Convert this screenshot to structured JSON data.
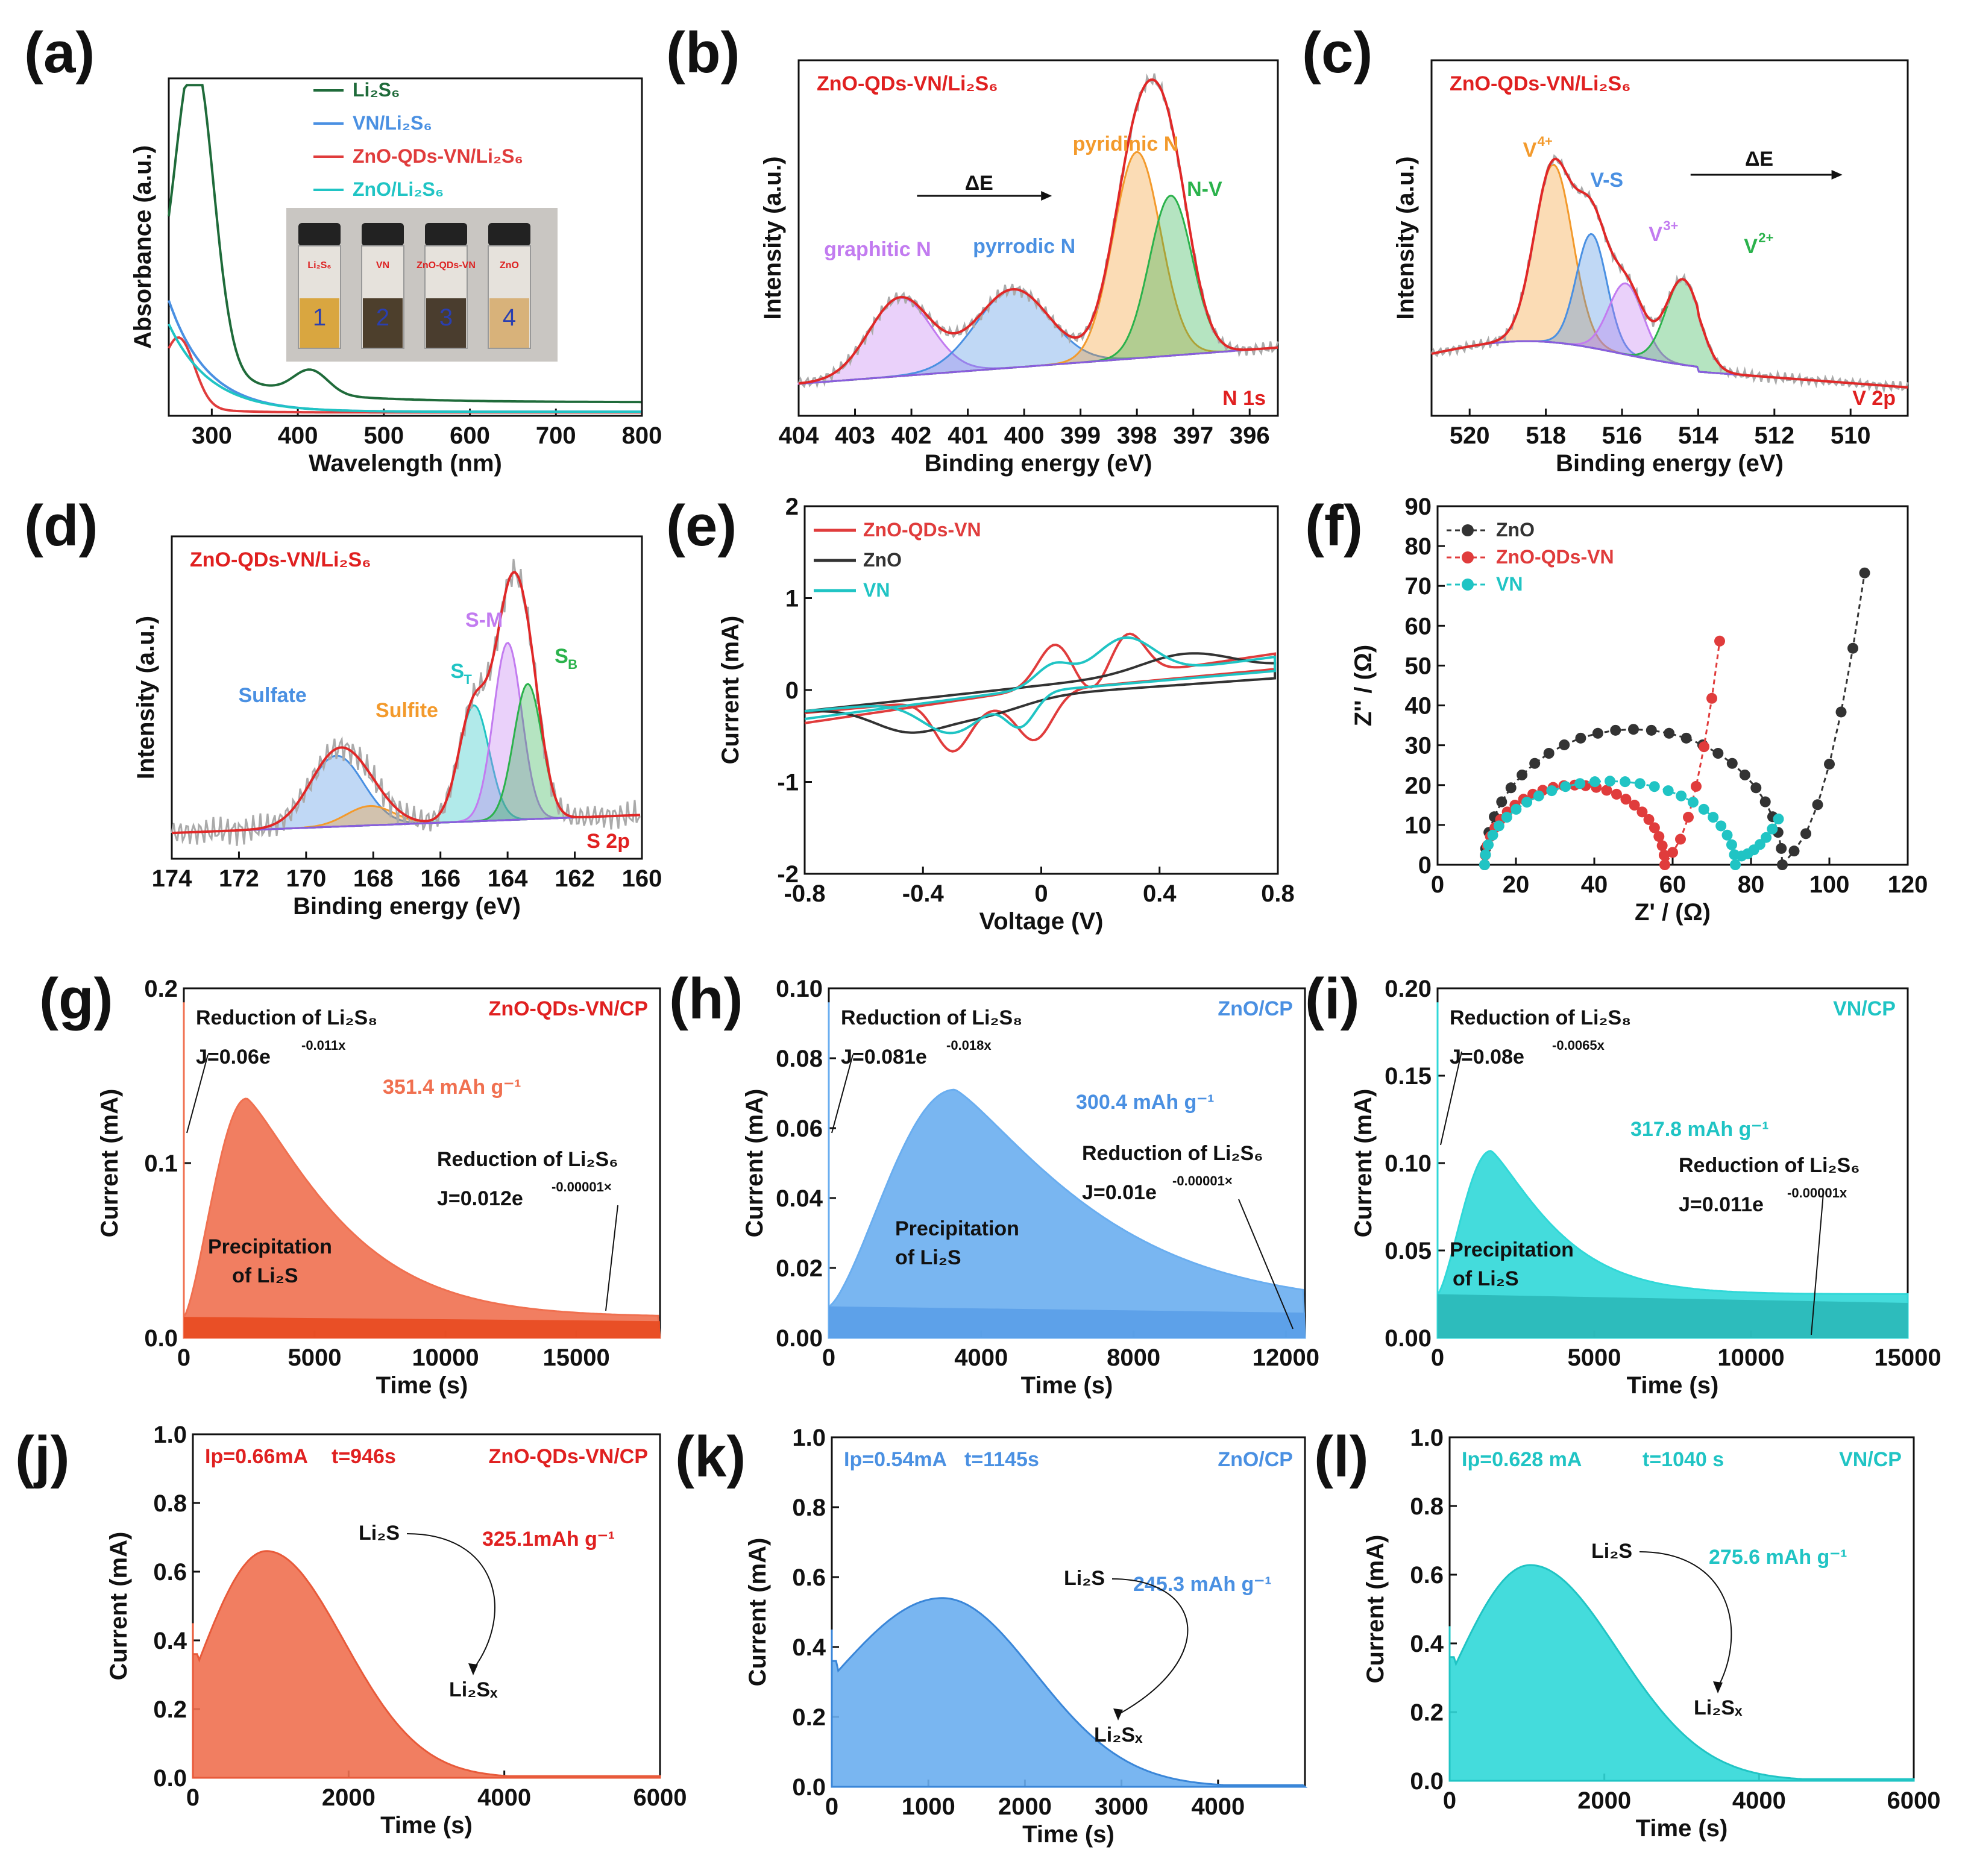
{
  "figure": {
    "panel_labels": [
      "(a)",
      "(b)",
      "(c)",
      "(d)",
      "(e)",
      "(f)",
      "(g)",
      "(h)",
      "(i)",
      "(j)",
      "(k)",
      "(l)"
    ]
  },
  "chart_data": [
    {
      "id": "a",
      "type": "line",
      "xlabel": "Wavelength (nm)",
      "ylabel": "Absorbance (a.u.)",
      "xlim": [
        250,
        800
      ],
      "xticks": [
        300,
        400,
        500,
        600,
        700,
        800
      ],
      "legend": [
        "Li2S6",
        "VN/Li2S6",
        "ZnO-QDs-VN/Li2S6",
        "ZnO/Li2S6"
      ],
      "legend_text": [
        "Li₂S₆",
        "VN/Li₂S₆",
        "ZnO-QDs-VN/Li₂S₆",
        "ZnO/Li₂S₆"
      ],
      "inset_labels": [
        "Li₂S₆",
        "VN",
        "ZnO-QDs-VN",
        "ZnO"
      ],
      "inset_numbers": [
        "1",
        "2",
        "3",
        "4"
      ],
      "colors": [
        "#1f6b3a",
        "#4a90e2",
        "#e03c3c",
        "#20c4c4"
      ]
    },
    {
      "id": "b",
      "type": "line",
      "title": "ZnO-QDs-VN/Li₂S₆",
      "corner": "N 1s",
      "xlabel": "Binding energy (eV)",
      "ylabel": "Intensity (a.u.)",
      "xlim": [
        404,
        395.5
      ],
      "xticks": [
        404,
        403,
        402,
        401,
        400,
        399,
        398,
        397,
        396
      ],
      "peaks": [
        {
          "name": "graphitic N",
          "center": 402.2,
          "color": "#c27bf0"
        },
        {
          "name": "pyrrodic N",
          "center": 400.2,
          "color": "#4a90e2"
        },
        {
          "name": "pyridinic N",
          "center": 398.0,
          "color": "#f39a2c"
        },
        {
          "name": "N-V",
          "center": 397.4,
          "color": "#2bb24c"
        }
      ],
      "shift_label": "ΔE"
    },
    {
      "id": "c",
      "type": "line",
      "title": "ZnO-QDs-VN/Li₂S₆",
      "corner": "V 2p",
      "xlabel": "Binding energy (eV)",
      "ylabel": "Intensity (a.u.)",
      "xlim": [
        521,
        508.5
      ],
      "xticks": [
        520,
        518,
        516,
        514,
        512,
        510
      ],
      "peaks": [
        {
          "name": "V4+",
          "center": 517.8,
          "color": "#f39a2c"
        },
        {
          "name": "V-S",
          "center": 516.8,
          "color": "#4a90e2"
        },
        {
          "name": "V3+",
          "center": 515.9,
          "color": "#c27bf0"
        },
        {
          "name": "V2+",
          "center": 514.4,
          "color": "#2bb24c"
        }
      ],
      "shift_label": "ΔE"
    },
    {
      "id": "d",
      "type": "line",
      "title": "ZnO-QDs-VN/Li₂S₆",
      "corner": "S 2p",
      "xlabel": "Binding energy (eV)",
      "ylabel": "Intensity (a.u.)",
      "xlim": [
        174,
        160
      ],
      "xticks": [
        174,
        172,
        170,
        168,
        166,
        164,
        162,
        160
      ],
      "peaks": [
        {
          "name": "Sulfate",
          "center": 169.1,
          "color": "#4a90e2"
        },
        {
          "name": "Sulfite",
          "center": 168.1,
          "color": "#f39a2c"
        },
        {
          "name": "ST",
          "center": 165.0,
          "color": "#20c4c4"
        },
        {
          "name": "S-M",
          "center": 164.0,
          "color": "#c27bf0"
        },
        {
          "name": "SB",
          "center": 163.4,
          "color": "#2bb24c"
        }
      ]
    },
    {
      "id": "e",
      "type": "line",
      "xlabel": "Voltage (V)",
      "ylabel": "Current (mA)",
      "xlim": [
        -0.8,
        0.8
      ],
      "ylim": [
        -2,
        2
      ],
      "xticks": [
        -0.8,
        -0.4,
        0.0,
        0.4,
        0.8
      ],
      "yticks": [
        -2,
        -1,
        0,
        1,
        2
      ],
      "legend": [
        "ZnO-QDs-VN",
        "ZnO",
        "VN"
      ],
      "colors": [
        "#e03c3c",
        "#333333",
        "#20c4c4"
      ]
    },
    {
      "id": "f",
      "type": "scatter",
      "xlabel": "Z' / (Ω)",
      "ylabel": "Z'' / (Ω)",
      "xlim": [
        0,
        120
      ],
      "ylim": [
        0,
        90
      ],
      "xticks": [
        0,
        20,
        40,
        60,
        80,
        100,
        120
      ],
      "yticks": [
        0,
        10,
        20,
        30,
        40,
        50,
        60,
        70,
        80,
        90
      ],
      "legend": [
        "ZnO",
        "ZnO-QDs-VN",
        "VN"
      ],
      "colors": [
        "#333333",
        "#e03c3c",
        "#20c4c4"
      ],
      "series": [
        {
          "name": "ZnO",
          "r0": 12,
          "rct": 76,
          "tail_end": [
            109,
            75
          ]
        },
        {
          "name": "ZnO-QDs-VN",
          "r0": 12,
          "rct": 46,
          "tail_end": [
            72,
            57
          ]
        },
        {
          "name": "VN",
          "r0": 12,
          "rct": 64,
          "tail_end": [
            87,
            10
          ]
        }
      ]
    },
    {
      "id": "g",
      "type": "area",
      "label": "ZnO-QDs-VN/CP",
      "xlabel": "Time (s)",
      "ylabel": "Current (mA)",
      "xlim": [
        0,
        18200
      ],
      "ylim": [
        0,
        0.2
      ],
      "xticks": [
        0,
        5000,
        10000,
        15000
      ],
      "yticks": [
        0.0,
        0.1,
        0.2
      ],
      "peak": {
        "t": 2400,
        "i": 0.137
      },
      "capacity": "351.4 mAh g⁻¹",
      "fit1": "J=0.06e",
      "fit1_exp": "-0.011x",
      "fit2": "J=0.012e",
      "fit2_exp": "-0.00001×",
      "red1": "Reduction of Li₂S₈",
      "red2": "Reduction of Li₂S₆",
      "precip": [
        "Precipitation",
        "of Li₂S"
      ],
      "color": "#f07050"
    },
    {
      "id": "h",
      "type": "area",
      "label": "ZnO/CP",
      "xlabel": "Time (s)",
      "ylabel": "Current (mA)",
      "xlim": [
        0,
        12500
      ],
      "ylim": [
        0,
        0.1
      ],
      "xticks": [
        0,
        4000,
        8000,
        12000
      ],
      "yticks": [
        0.0,
        0.02,
        0.04,
        0.06,
        0.08,
        0.1
      ],
      "peak": {
        "t": 3300,
        "i": 0.071
      },
      "capacity": "300.4 mAh g⁻¹",
      "fit1": "J=0.081e",
      "fit1_exp": "-0.018x",
      "fit2": "J=0.01e",
      "fit2_exp": "-0.00001×",
      "red1": "Reduction of Li₂S₈",
      "red2": "Reduction of Li₂S₆",
      "precip": [
        "Precipitation",
        "of Li₂S"
      ],
      "color": "#6aaef0"
    },
    {
      "id": "i",
      "type": "area",
      "label": "VN/CP",
      "xlabel": "Time (s)",
      "ylabel": "Current (mA)",
      "xlim": [
        0,
        15000
      ],
      "ylim": [
        0,
        0.2
      ],
      "xticks": [
        0,
        5000,
        10000,
        15000
      ],
      "yticks": [
        0.0,
        0.05,
        0.1,
        0.15,
        0.2
      ],
      "peak": {
        "t": 1700,
        "i": 0.107
      },
      "capacity": "317.8 mAh g⁻¹",
      "fit1": "J=0.08e",
      "fit1_exp": "-0.0065x",
      "fit2": "J=0.011e",
      "fit2_exp": "-0.00001x",
      "red1": "Reduction of Li₂S₈",
      "red2": "Reduction of Li₂S₆",
      "precip": [
        "Precipitation",
        "of Li₂S"
      ],
      "color": "#30d8d8"
    },
    {
      "id": "j",
      "type": "area",
      "label": "ZnO-QDs-VN/CP",
      "xlabel": "Time (s)",
      "ylabel": "Current (mA)",
      "xlim": [
        0,
        6000
      ],
      "ylim": [
        0,
        1.0
      ],
      "xticks": [
        0,
        2000,
        4000,
        6000
      ],
      "yticks": [
        0.0,
        0.2,
        0.4,
        0.6,
        0.8,
        1.0
      ],
      "ip": "Ip=0.66mA",
      "t": "t=946s",
      "peak": {
        "t": 946,
        "i": 0.66
      },
      "capacity": "325.1mAh g⁻¹",
      "from": "Li₂S",
      "to": "Li₂Sₓ",
      "color": "#f07050"
    },
    {
      "id": "k",
      "type": "area",
      "label": "ZnO/CP",
      "xlabel": "Time (s)",
      "ylabel": "Current (mA)",
      "xlim": [
        0,
        4900
      ],
      "ylim": [
        0,
        1.0
      ],
      "xticks": [
        0,
        1000,
        2000,
        3000,
        4000
      ],
      "yticks": [
        0.0,
        0.2,
        0.4,
        0.6,
        0.8,
        1.0
      ],
      "ip": "Ip=0.54mA",
      "t": "t=1145s",
      "peak": {
        "t": 1145,
        "i": 0.54
      },
      "capacity": "245.3 mAh g⁻¹",
      "from": "Li₂S",
      "to": "Li₂Sₓ",
      "color": "#6aaef0"
    },
    {
      "id": "l",
      "type": "area",
      "label": "VN/CP",
      "xlabel": "Time (s)",
      "ylabel": "Current (mA)",
      "xlim": [
        0,
        6000
      ],
      "ylim": [
        0,
        1.0
      ],
      "xticks": [
        0,
        2000,
        4000,
        6000
      ],
      "yticks": [
        0.0,
        0.2,
        0.4,
        0.6,
        0.8,
        1.0
      ],
      "ip": "Ip=0.628 mA",
      "t": "t=1040 s",
      "peak": {
        "t": 1040,
        "i": 0.628
      },
      "capacity": "275.6 mAh g⁻¹",
      "from": "Li₂S",
      "to": "Li₂Sₓ",
      "color": "#30d8d8"
    }
  ]
}
